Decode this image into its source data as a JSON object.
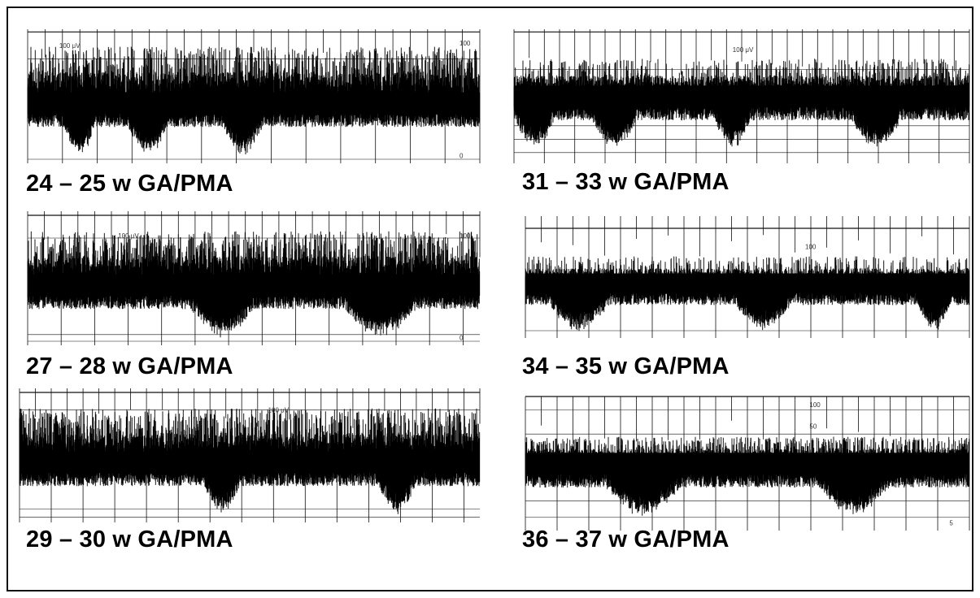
{
  "panels": [
    {
      "caption": "24 – 25 w GA/PMA",
      "scale_label": "100 μV",
      "right_label": "100",
      "base_label": "0"
    },
    {
      "caption": "27 – 28 w GA/PMA",
      "scale_label": "100 μV",
      "right_label": "100",
      "base_label": "0"
    },
    {
      "caption": "29 – 30 w GA/PMA",
      "scale_label": "100 μV",
      "right_label": "",
      "base_label": ""
    },
    {
      "caption": "31 – 33 w GA/PMA",
      "scale_label": "100 μV",
      "right_label": "",
      "base_label": ""
    },
    {
      "caption": "34 – 35 w GA/PMA",
      "scale_label": "100",
      "right_label": "",
      "base_label": ""
    },
    {
      "caption": "36 – 37 w GA/PMA",
      "scale_label": "100",
      "right_label": "50",
      "base_label": "5"
    }
  ],
  "trace_color": "#000000",
  "grid_color": "#111111"
}
